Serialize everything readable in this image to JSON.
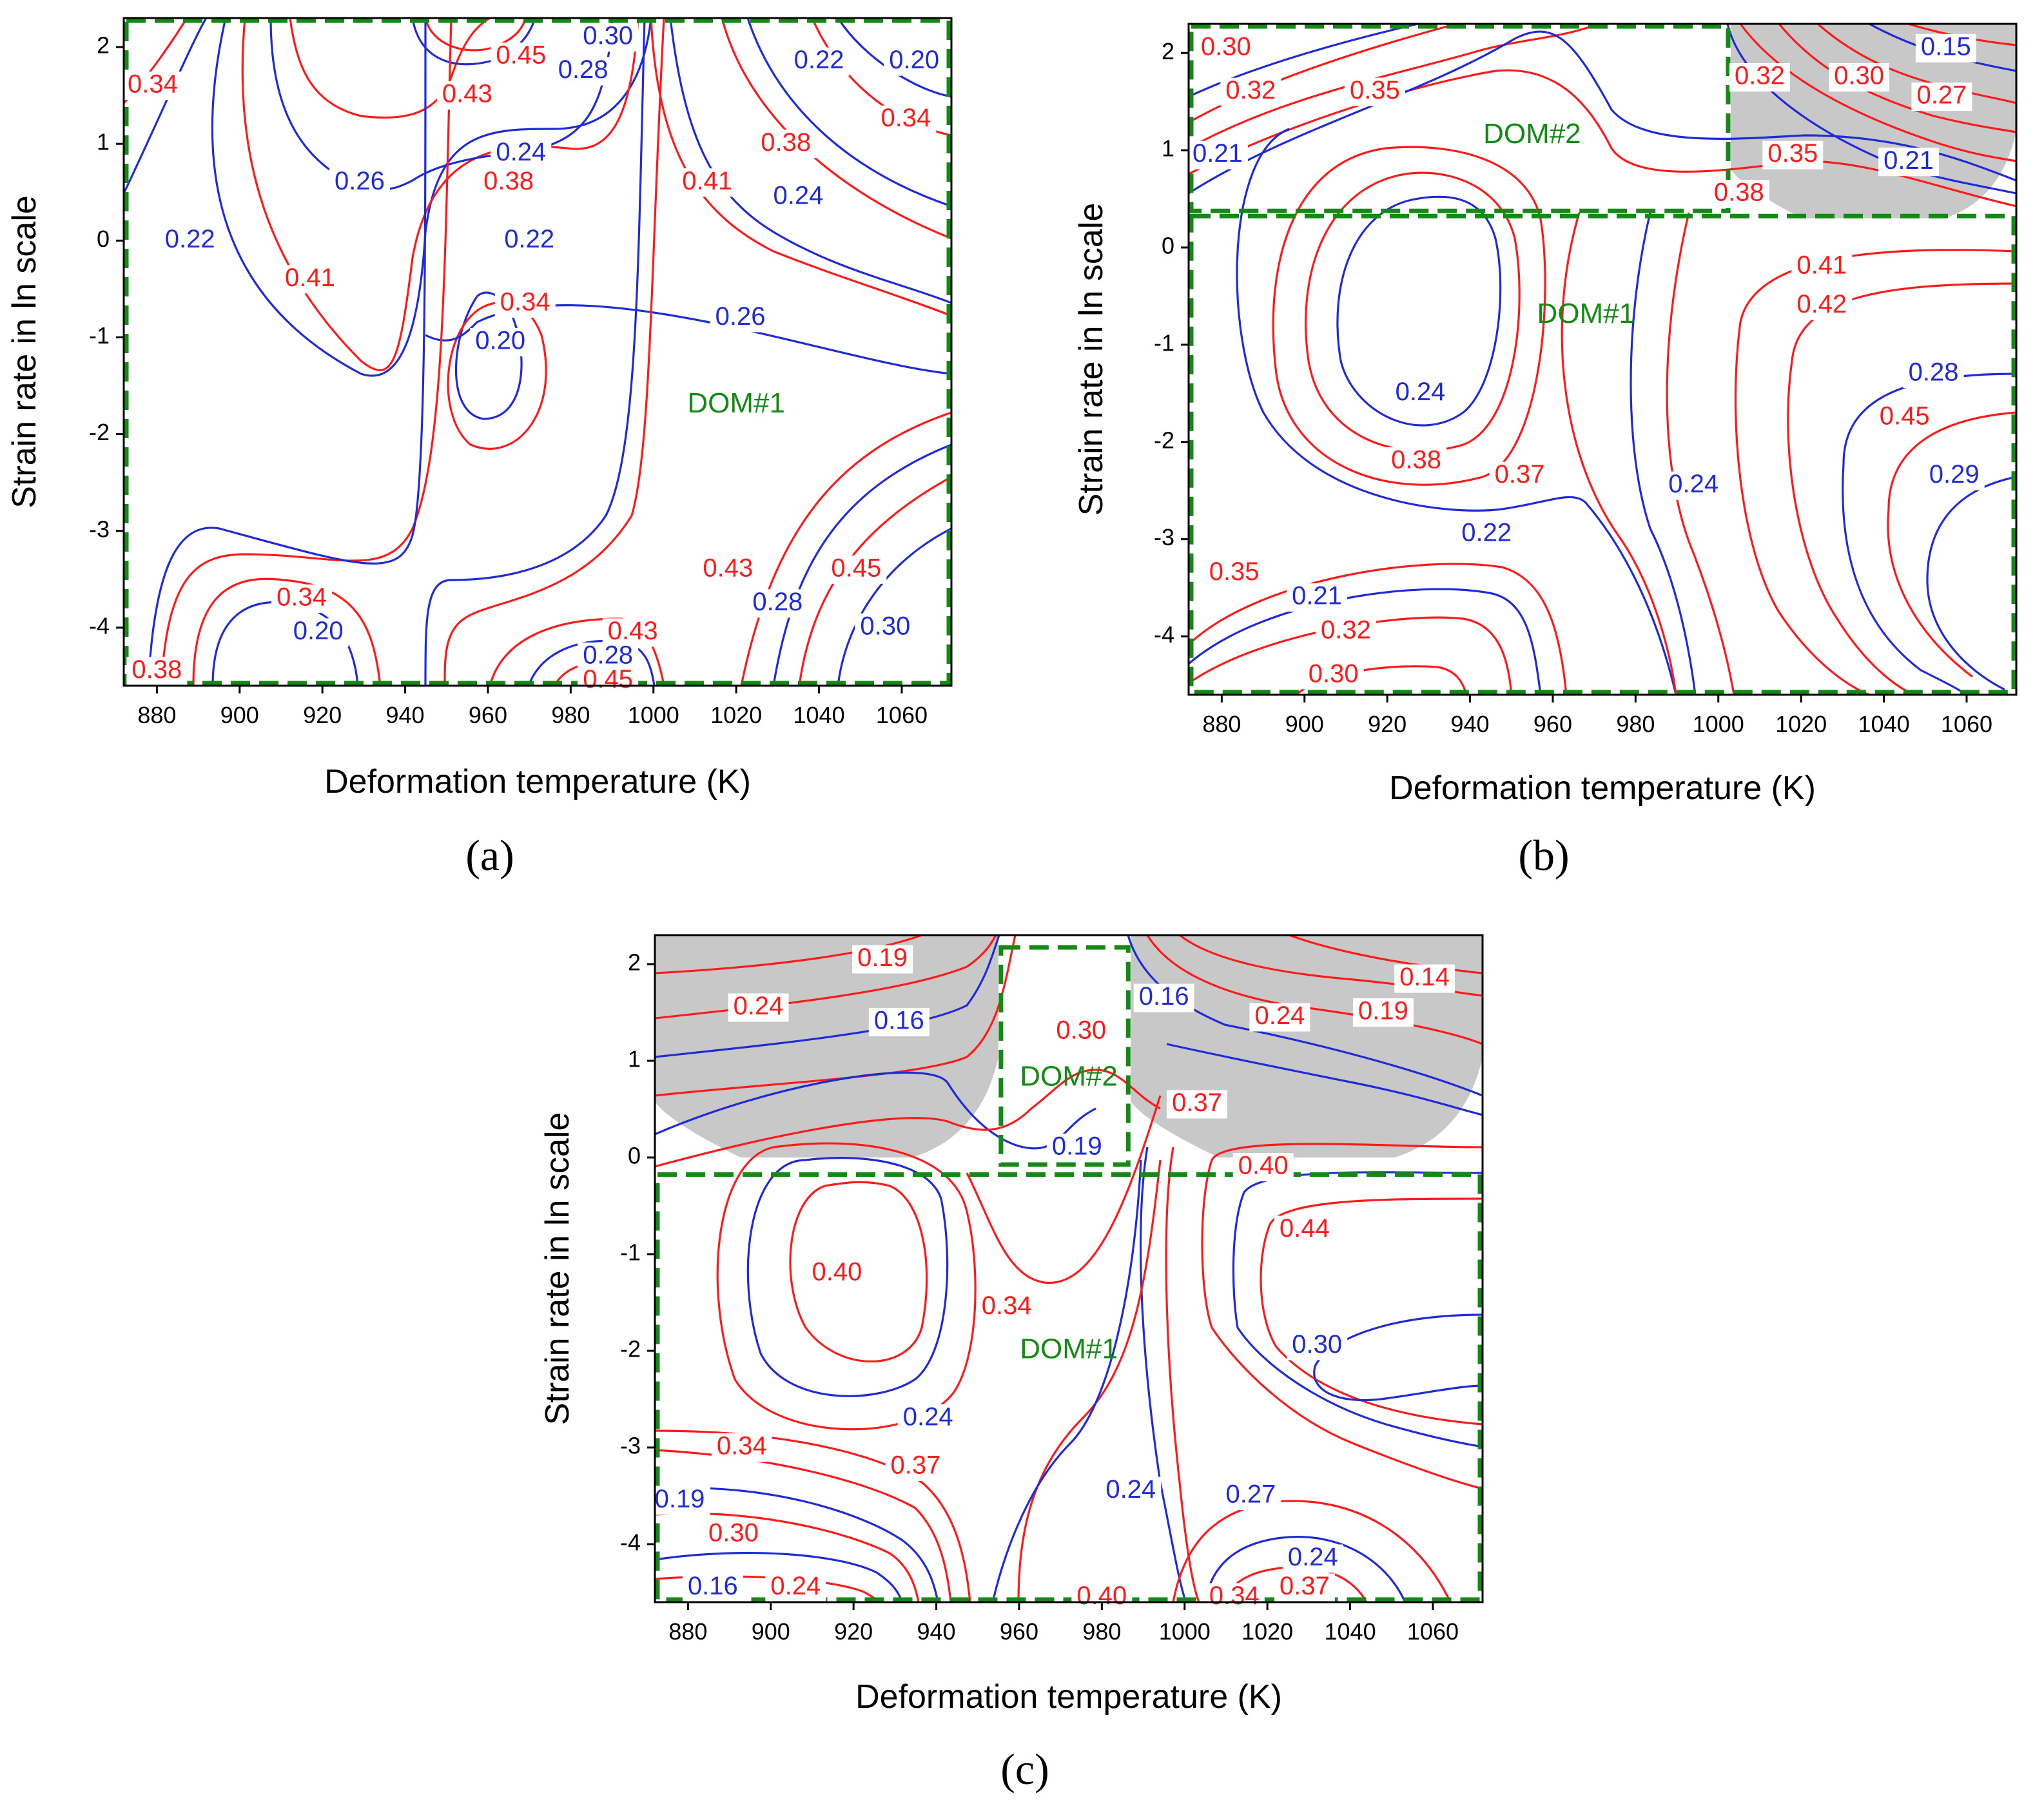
{
  "colors": {
    "red": "#ff1a1a",
    "blue": "#1f2bd6",
    "green": "#138a13",
    "gray": "#c8c8c8",
    "axis": "#000000"
  },
  "chart_data": [
    {
      "type": "contour",
      "panel": "a",
      "caption": "(a)",
      "xlabel": "Deformation temperature (K)",
      "ylabel": "Strain rate in ln scale",
      "xlim": [
        872,
        1072
      ],
      "ylim": [
        -4.6,
        2.3
      ],
      "xticks": [
        880,
        900,
        920,
        940,
        960,
        980,
        1000,
        1020,
        1040,
        1060
      ],
      "yticks": [
        2,
        1,
        0,
        -1,
        -2,
        -3,
        -4
      ],
      "regions": [
        {
          "name": "DOM#1",
          "x": [
            872,
            1072
          ],
          "y": [
            -4.6,
            2.3
          ],
          "label_at": [
            1020,
            -1.7
          ]
        }
      ],
      "unstable_regions": [],
      "contour_labels": [
        {
          "text": "0.34",
          "color": "red",
          "x": 879,
          "y": 1.6
        },
        {
          "text": "0.30",
          "color": "blue",
          "x": 989,
          "y": 2.1
        },
        {
          "text": "0.45",
          "color": "red",
          "x": 968,
          "y": 1.9
        },
        {
          "text": "0.28",
          "color": "blue",
          "x": 983,
          "y": 1.75
        },
        {
          "text": "0.43",
          "color": "red",
          "x": 955,
          "y": 1.5
        },
        {
          "text": "0.22",
          "color": "blue",
          "x": 1040,
          "y": 1.85
        },
        {
          "text": "0.20",
          "color": "blue",
          "x": 1063,
          "y": 1.85
        },
        {
          "text": "0.34",
          "color": "red",
          "x": 1061,
          "y": 1.25
        },
        {
          "text": "0.38",
          "color": "red",
          "x": 1032,
          "y": 1.0
        },
        {
          "text": "0.24",
          "color": "blue",
          "x": 968,
          "y": 0.9
        },
        {
          "text": "0.26",
          "color": "blue",
          "x": 929,
          "y": 0.6
        },
        {
          "text": "0.38",
          "color": "red",
          "x": 965,
          "y": 0.6
        },
        {
          "text": "0.41",
          "color": "red",
          "x": 1013,
          "y": 0.6
        },
        {
          "text": "0.24",
          "color": "blue",
          "x": 1035,
          "y": 0.45
        },
        {
          "text": "0.22",
          "color": "blue",
          "x": 888,
          "y": 0.0
        },
        {
          "text": "0.22",
          "color": "blue",
          "x": 970,
          "y": 0.0
        },
        {
          "text": "0.41",
          "color": "red",
          "x": 917,
          "y": -0.4
        },
        {
          "text": "0.34",
          "color": "red",
          "x": 969,
          "y": -0.65
        },
        {
          "text": "0.20",
          "color": "blue",
          "x": 963,
          "y": -1.05
        },
        {
          "text": "0.26",
          "color": "blue",
          "x": 1021,
          "y": -0.8
        },
        {
          "text": "0.34",
          "color": "red",
          "x": 915,
          "y": -3.7
        },
        {
          "text": "0.20",
          "color": "blue",
          "x": 919,
          "y": -4.05
        },
        {
          "text": "0.38",
          "color": "red",
          "x": 880,
          "y": -4.45
        },
        {
          "text": "0.43",
          "color": "red",
          "x": 1018,
          "y": -3.4
        },
        {
          "text": "0.28",
          "color": "blue",
          "x": 1030,
          "y": -3.75
        },
        {
          "text": "0.45",
          "color": "red",
          "x": 1049,
          "y": -3.4
        },
        {
          "text": "0.30",
          "color": "blue",
          "x": 1056,
          "y": -4.0
        },
        {
          "text": "0.43",
          "color": "red",
          "x": 995,
          "y": -4.05
        },
        {
          "text": "0.28",
          "color": "blue",
          "x": 989,
          "y": -4.3
        },
        {
          "text": "0.45",
          "color": "red",
          "x": 989,
          "y": -4.55
        }
      ]
    },
    {
      "type": "contour",
      "panel": "b",
      "caption": "(b)",
      "xlabel": "Deformation temperature (K)",
      "ylabel": "Strain rate in ln scale",
      "xlim": [
        872,
        1072
      ],
      "ylim": [
        -4.6,
        2.3
      ],
      "xticks": [
        880,
        900,
        920,
        940,
        960,
        980,
        1000,
        1020,
        1040,
        1060
      ],
      "yticks": [
        2,
        1,
        0,
        -1,
        -2,
        -3,
        -4
      ],
      "regions": [
        {
          "name": "DOM#2",
          "x": [
            872,
            1003
          ],
          "y": [
            0.35,
            2.3
          ],
          "label_at": [
            955,
            1.15
          ]
        },
        {
          "name": "DOM#1",
          "x": [
            872,
            1072
          ],
          "y": [
            -4.6,
            0.35
          ],
          "label_at": [
            968,
            -0.7
          ]
        }
      ],
      "unstable_regions": [
        {
          "x": [
            1003,
            1072
          ],
          "y": [
            0.3,
            2.3
          ]
        }
      ],
      "contour_labels": [
        {
          "text": "0.30",
          "color": "red",
          "x": 881,
          "y": 2.05
        },
        {
          "text": "0.32",
          "color": "red",
          "x": 887,
          "y": 1.6
        },
        {
          "text": "0.35",
          "color": "red",
          "x": 917,
          "y": 1.6
        },
        {
          "text": "0.32",
          "color": "red",
          "x": 1010,
          "y": 1.75
        },
        {
          "text": "0.30",
          "color": "red",
          "x": 1034,
          "y": 1.75
        },
        {
          "text": "0.15",
          "color": "blue",
          "x": 1055,
          "y": 2.05
        },
        {
          "text": "0.27",
          "color": "red",
          "x": 1054,
          "y": 1.55
        },
        {
          "text": "0.21",
          "color": "blue",
          "x": 879,
          "y": 0.95
        },
        {
          "text": "0.35",
          "color": "red",
          "x": 1018,
          "y": 0.95
        },
        {
          "text": "0.21",
          "color": "blue",
          "x": 1046,
          "y": 0.88
        },
        {
          "text": "0.38",
          "color": "red",
          "x": 1005,
          "y": 0.55
        },
        {
          "text": "0.41",
          "color": "red",
          "x": 1025,
          "y": -0.2
        },
        {
          "text": "0.42",
          "color": "red",
          "x": 1025,
          "y": -0.6
        },
        {
          "text": "0.28",
          "color": "blue",
          "x": 1052,
          "y": -1.3
        },
        {
          "text": "0.45",
          "color": "red",
          "x": 1045,
          "y": -1.75
        },
        {
          "text": "0.24",
          "color": "blue",
          "x": 928,
          "y": -1.5
        },
        {
          "text": "0.38",
          "color": "red",
          "x": 927,
          "y": -2.2
        },
        {
          "text": "0.37",
          "color": "red",
          "x": 952,
          "y": -2.35
        },
        {
          "text": "0.24",
          "color": "blue",
          "x": 994,
          "y": -2.45
        },
        {
          "text": "0.29",
          "color": "blue",
          "x": 1057,
          "y": -2.35
        },
        {
          "text": "0.22",
          "color": "blue",
          "x": 944,
          "y": -2.95
        },
        {
          "text": "0.35",
          "color": "red",
          "x": 883,
          "y": -3.35
        },
        {
          "text": "0.21",
          "color": "blue",
          "x": 903,
          "y": -3.6
        },
        {
          "text": "0.32",
          "color": "red",
          "x": 910,
          "y": -3.95
        },
        {
          "text": "0.30",
          "color": "red",
          "x": 907,
          "y": -4.4
        }
      ]
    },
    {
      "type": "contour",
      "panel": "c",
      "caption": "(c)",
      "xlabel": "Deformation temperature (K)",
      "ylabel": "Strain rate in ln scale",
      "xlim": [
        872,
        1072
      ],
      "ylim": [
        -4.6,
        2.3
      ],
      "xticks": [
        880,
        900,
        920,
        940,
        960,
        980,
        1000,
        1020,
        1040,
        1060
      ],
      "yticks": [
        2,
        1,
        0,
        -1,
        -2,
        -3,
        -4
      ],
      "regions": [
        {
          "name": "DOM#2",
          "x": [
            955,
            987
          ],
          "y": [
            -0.1,
            2.2
          ],
          "label_at": [
            972,
            0.82
          ]
        },
        {
          "name": "DOM#1",
          "x": [
            872,
            1072
          ],
          "y": [
            -4.6,
            -0.15
          ],
          "label_at": [
            972,
            -2.0
          ]
        }
      ],
      "unstable_regions": [
        {
          "x": [
            872,
            955
          ],
          "y": [
            0.0,
            2.3
          ]
        },
        {
          "x": [
            987,
            1072
          ],
          "y": [
            0.0,
            2.3
          ]
        }
      ],
      "contour_labels": [
        {
          "text": "0.19",
          "color": "red",
          "x": 927,
          "y": 2.05
        },
        {
          "text": "0.24",
          "color": "red",
          "x": 897,
          "y": 1.55
        },
        {
          "text": "0.16",
          "color": "blue",
          "x": 931,
          "y": 1.4
        },
        {
          "text": "0.30",
          "color": "red",
          "x": 975,
          "y": 1.3
        },
        {
          "text": "0.16",
          "color": "blue",
          "x": 995,
          "y": 1.65
        },
        {
          "text": "0.14",
          "color": "red",
          "x": 1058,
          "y": 1.85
        },
        {
          "text": "0.24",
          "color": "red",
          "x": 1023,
          "y": 1.45
        },
        {
          "text": "0.19",
          "color": "red",
          "x": 1048,
          "y": 1.5
        },
        {
          "text": "DOM#2",
          "color": "green",
          "x": 972,
          "y": 0.82
        },
        {
          "text": "0.37",
          "color": "red",
          "x": 1003,
          "y": 0.55
        },
        {
          "text": "0.19",
          "color": "blue",
          "x": 974,
          "y": 0.1
        },
        {
          "text": "0.40",
          "color": "red",
          "x": 1019,
          "y": -0.1
        },
        {
          "text": "0.44",
          "color": "red",
          "x": 1029,
          "y": -0.75
        },
        {
          "text": "0.40",
          "color": "red",
          "x": 916,
          "y": -1.2
        },
        {
          "text": "0.34",
          "color": "red",
          "x": 957,
          "y": -1.55
        },
        {
          "text": "0.30",
          "color": "blue",
          "x": 1032,
          "y": -1.95
        },
        {
          "text": "0.24",
          "color": "blue",
          "x": 938,
          "y": -2.7
        },
        {
          "text": "0.34",
          "color": "red",
          "x": 893,
          "y": -3.0
        },
        {
          "text": "0.37",
          "color": "red",
          "x": 935,
          "y": -3.2
        },
        {
          "text": "0.24",
          "color": "blue",
          "x": 987,
          "y": -3.45
        },
        {
          "text": "0.27",
          "color": "blue",
          "x": 1016,
          "y": -3.5
        },
        {
          "text": "0.19",
          "color": "blue",
          "x": 878,
          "y": -3.55
        },
        {
          "text": "0.30",
          "color": "red",
          "x": 891,
          "y": -3.9
        },
        {
          "text": "0.24",
          "color": "blue",
          "x": 1031,
          "y": -4.15
        },
        {
          "text": "0.16",
          "color": "blue",
          "x": 886,
          "y": -4.45
        },
        {
          "text": "0.24",
          "color": "red",
          "x": 906,
          "y": -4.45
        },
        {
          "text": "0.37",
          "color": "red",
          "x": 1029,
          "y": -4.45
        },
        {
          "text": "0.40",
          "color": "red",
          "x": 980,
          "y": -4.55
        },
        {
          "text": "0.34",
          "color": "red",
          "x": 1012,
          "y": -4.55
        }
      ]
    }
  ]
}
